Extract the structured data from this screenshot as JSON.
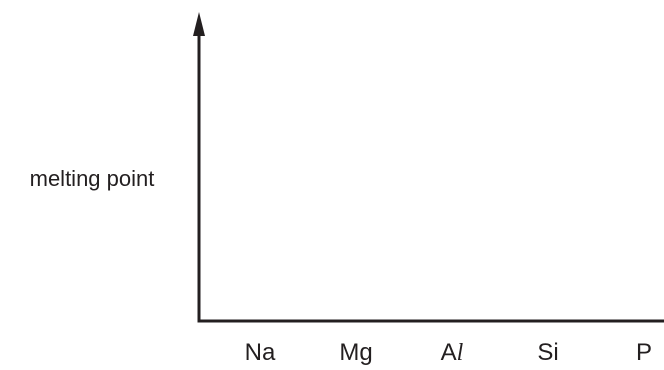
{
  "chart_data": {
    "type": "line",
    "title": "",
    "xlabel": "",
    "ylabel": "melting point",
    "categories": [
      "Na",
      "Mg",
      "Al",
      "Si",
      "P"
    ],
    "series": [],
    "grid": false,
    "legend": "none",
    "axis_color": "#231f20"
  }
}
